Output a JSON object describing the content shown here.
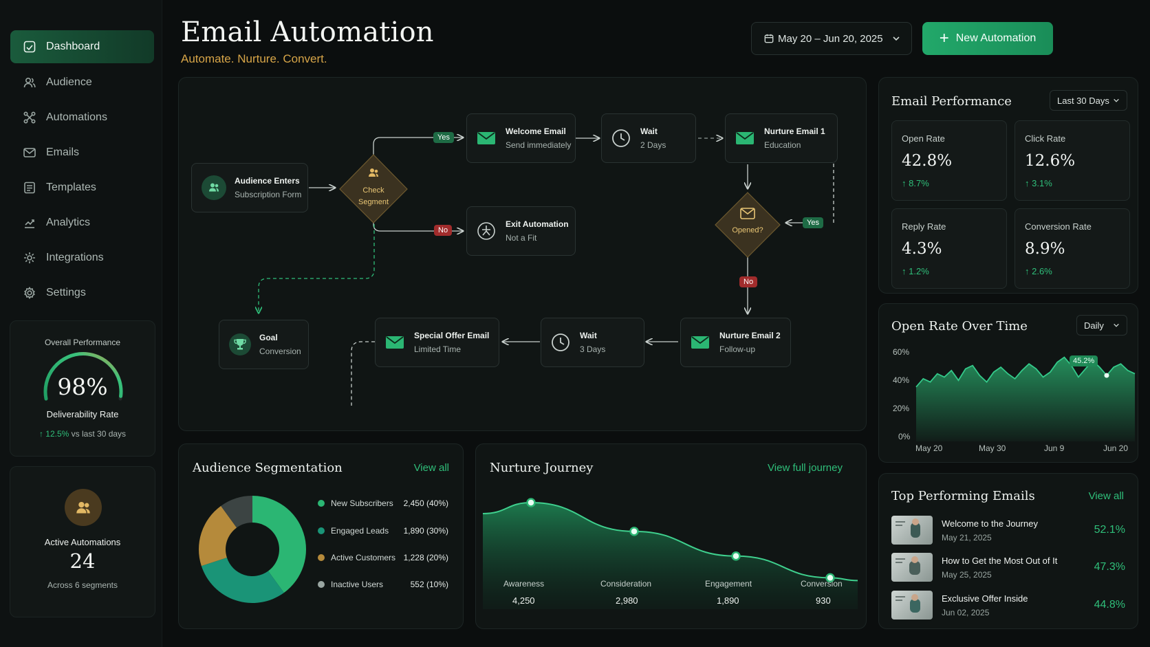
{
  "sidebar": {
    "items": [
      {
        "label": "Dashboard",
        "icon": "dashboard-icon",
        "active": true
      },
      {
        "label": "Audience",
        "icon": "users-icon"
      },
      {
        "label": "Automations",
        "icon": "automations-icon"
      },
      {
        "label": "Emails",
        "icon": "mail-icon"
      },
      {
        "label": "Templates",
        "icon": "template-icon"
      },
      {
        "label": "Analytics",
        "icon": "analytics-icon"
      },
      {
        "label": "Integrations",
        "icon": "integrations-icon"
      },
      {
        "label": "Settings",
        "icon": "settings-icon"
      }
    ],
    "performance": {
      "title": "Overall Performance",
      "value": "98%",
      "gauge_fraction": 0.98,
      "label": "Deliverability Rate",
      "delta": "12.5%",
      "delta_suffix": "vs last 30 days"
    },
    "automations": {
      "title": "Active Automations",
      "value": "24",
      "sub": "Across 6 segments"
    }
  },
  "header": {
    "title": "Email Automation",
    "subtitle": "Automate. Nurture. Convert.",
    "date_range": "May 20 – Jun 20, 2025",
    "new_button": "New Automation"
  },
  "flow": {
    "entry": {
      "title": "Audience Enters",
      "sub": "Subscription Form"
    },
    "check": {
      "line1": "Check",
      "line2": "Segment"
    },
    "yes": "Yes",
    "no": "No",
    "welcome": {
      "title": "Welcome Email",
      "sub": "Send immediately"
    },
    "wait1": {
      "title": "Wait",
      "sub": "2 Days"
    },
    "nurture1": {
      "title": "Nurture Email 1",
      "sub": "Education"
    },
    "exit": {
      "title": "Exit Automation",
      "sub": "Not a Fit"
    },
    "opened": "Opened?",
    "goal": {
      "title": "Goal",
      "sub": "Conversion"
    },
    "special": {
      "title": "Special Offer Email",
      "sub": "Limited Time"
    },
    "wait2": {
      "title": "Wait",
      "sub": "3 Days"
    },
    "nurture2": {
      "title": "Nurture Email 2",
      "sub": "Follow-up"
    }
  },
  "email_performance": {
    "title": "Email Performance",
    "range": "Last 30 Days",
    "metrics": [
      {
        "label": "Open Rate",
        "value": "42.8%",
        "delta": "8.7%"
      },
      {
        "label": "Click Rate",
        "value": "12.6%",
        "delta": "3.1%"
      },
      {
        "label": "Reply Rate",
        "value": "4.3%",
        "delta": "1.2%"
      },
      {
        "label": "Conversion Rate",
        "value": "8.9%",
        "delta": "2.6%"
      }
    ]
  },
  "open_rate_chart": {
    "title": "Open Rate Over Time",
    "interval": "Daily",
    "y_ticks": [
      "60%",
      "40%",
      "20%",
      "0%"
    ],
    "x_ticks": [
      "May 20",
      "May 30",
      "Jun 9",
      "Jun 20"
    ],
    "highlight": "45.2%",
    "series": [
      33,
      38,
      36,
      41,
      39,
      43,
      37,
      44,
      46,
      40,
      36,
      42,
      45,
      41,
      38,
      43,
      47,
      44,
      39,
      42,
      48,
      51,
      46,
      39,
      44,
      49,
      45,
      40,
      45,
      47,
      43,
      41
    ]
  },
  "segmentation": {
    "title": "Audience Segmentation",
    "link": "View all",
    "segments": [
      {
        "name": "New Subscribers",
        "value": "2,450 (40%)",
        "pct": 40,
        "color": "#2bb673"
      },
      {
        "name": "Engaged Leads",
        "value": "1,890 (30%)",
        "pct": 30,
        "color": "#1a9477"
      },
      {
        "name": "Active Customers",
        "value": "1,228 (20%)",
        "pct": 20,
        "color": "#b58a3b"
      },
      {
        "name": "Inactive Users",
        "value": "552 (10%)",
        "pct": 10,
        "color": "#3c4443"
      }
    ]
  },
  "journey": {
    "title": "Nurture Journey",
    "link": "View full journey",
    "stages": [
      {
        "name": "Awareness",
        "value": "4,250",
        "n": 4250
      },
      {
        "name": "Consideration",
        "value": "2,980",
        "n": 2980
      },
      {
        "name": "Engagement",
        "value": "1,890",
        "n": 1890
      },
      {
        "name": "Conversion",
        "value": "930",
        "n": 930
      }
    ]
  },
  "top_emails": {
    "title": "Top Performing Emails",
    "link": "View all",
    "items": [
      {
        "title": "Welcome to the Journey",
        "date": "May 21, 2025",
        "rate": "52.1%"
      },
      {
        "title": "How to Get the Most Out of It",
        "date": "May 25, 2025",
        "rate": "47.3%"
      },
      {
        "title": "Exclusive Offer Inside",
        "date": "Jun 02, 2025",
        "rate": "44.8%"
      }
    ]
  }
}
